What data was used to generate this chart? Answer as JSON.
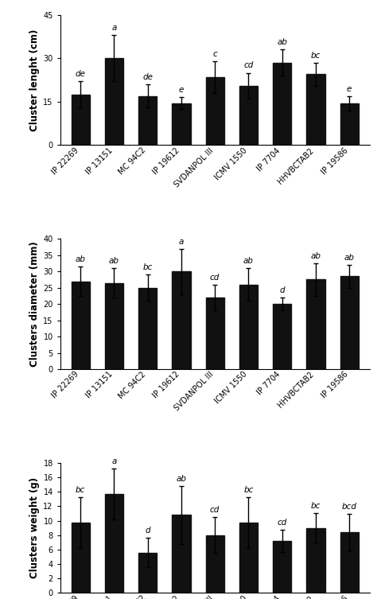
{
  "categories": [
    "IP 22269",
    "IP 13151",
    "MC 94C2",
    "IP 19612",
    "SVDANPOL III",
    "ICMV 1550",
    "IP 7704",
    "HHVBCTAB2",
    "IP 19586"
  ],
  "chart1": {
    "ylabel": "Cluster lenght (cm)",
    "values": [
      17.5,
      30.0,
      17.0,
      14.5,
      23.5,
      20.5,
      28.5,
      24.5,
      14.5
    ],
    "errors": [
      4.5,
      8.0,
      4.0,
      2.0,
      5.5,
      4.5,
      4.5,
      4.0,
      2.5
    ],
    "letters": [
      "de",
      "a",
      "de",
      "e",
      "c",
      "cd",
      "ab",
      "bc",
      "e"
    ],
    "ylim": [
      0,
      45
    ],
    "yticks": [
      0,
      15,
      30,
      45
    ]
  },
  "chart2": {
    "ylabel": "Clusters diameter (mm)",
    "values": [
      27.0,
      26.5,
      25.0,
      30.0,
      22.0,
      26.0,
      20.0,
      27.5,
      28.5
    ],
    "errors": [
      4.5,
      4.5,
      4.0,
      7.0,
      4.0,
      5.0,
      2.0,
      5.0,
      3.5
    ],
    "letters": [
      "ab",
      "ab",
      "bc",
      "a",
      "cd",
      "ab",
      "d",
      "ab",
      "ab"
    ],
    "ylim": [
      0,
      40
    ],
    "yticks": [
      0,
      5,
      10,
      15,
      20,
      25,
      30,
      35,
      40
    ]
  },
  "chart3": {
    "ylabel": "Clusters weight (g)",
    "values": [
      9.7,
      13.7,
      5.6,
      10.8,
      8.0,
      9.7,
      7.2,
      9.0,
      8.4
    ],
    "errors": [
      3.5,
      3.5,
      2.0,
      4.0,
      2.5,
      3.5,
      1.5,
      2.0,
      2.5
    ],
    "letters": [
      "bc",
      "a",
      "d",
      "ab",
      "cd",
      "bc",
      "cd",
      "bc",
      "bcd"
    ],
    "ylim": [
      0,
      18
    ],
    "yticks": [
      0,
      2,
      4,
      6,
      8,
      10,
      12,
      14,
      16,
      18
    ]
  },
  "bar_color": "#111111",
  "bar_width": 0.55,
  "letter_fontsize": 7.5,
  "label_fontsize": 8.5,
  "tick_fontsize": 7,
  "xtick_fontsize": 7
}
